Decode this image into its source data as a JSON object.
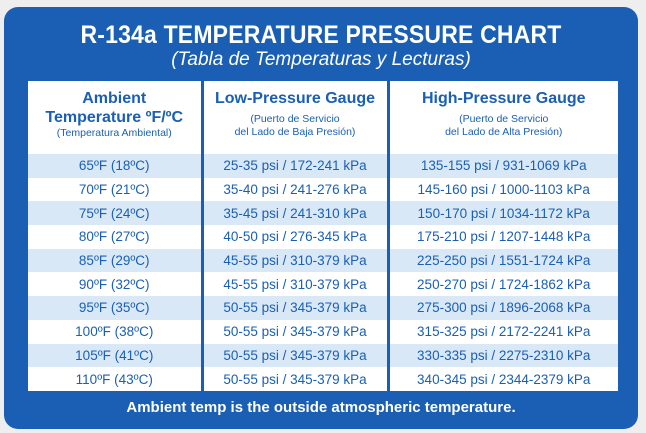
{
  "title": "R-134a TEMPERATURE PRESSURE CHART",
  "subtitle": "(Tabla de Temperaturas y Lecturas)",
  "colors": {
    "brand_blue": "#1a5fb4",
    "row_shade": "#d9e8f7",
    "background": "#eeeeee",
    "text_white": "#ffffff"
  },
  "headers": {
    "ambient": {
      "line1": "Ambient",
      "line2": "Temperature ºF/ºC",
      "sub": "(Temperatura Ambiental)"
    },
    "low": {
      "line1": "Low-Pressure Gauge",
      "sub1": "(Puerto de Servicio",
      "sub2": "del Lado de Baja Presión)"
    },
    "high": {
      "line1": "High-Pressure Gauge",
      "sub1": "(Puerto de Servicio",
      "sub2": "del Lado de Alta Presión)"
    }
  },
  "rows": [
    {
      "temp": "65ºF (18ºC)",
      "low": "25-35 psi / 172-241 kPa",
      "high": "135-155 psi / 931-1069 kPa"
    },
    {
      "temp": "70ºF (21ºC)",
      "low": "35-40 psi / 241-276 kPa",
      "high": "145-160 psi / 1000-1103 kPa"
    },
    {
      "temp": "75ºF (24ºC)",
      "low": "35-45 psi / 241-310 kPa",
      "high": "150-170 psi / 1034-1172 kPa"
    },
    {
      "temp": "80ºF (27ºC)",
      "low": "40-50 psi / 276-345 kPa",
      "high": "175-210 psi / 1207-1448 kPa"
    },
    {
      "temp": "85ºF (29ºC)",
      "low": "45-55 psi / 310-379 kPa",
      "high": "225-250 psi / 1551-1724 kPa"
    },
    {
      "temp": "90ºF (32ºC)",
      "low": "45-55 psi / 310-379 kPa",
      "high": "250-270 psi / 1724-1862 kPa"
    },
    {
      "temp": "95ºF (35ºC)",
      "low": "50-55 psi / 345-379 kPa",
      "high": "275-300 psi / 1896-2068 kPa"
    },
    {
      "temp": "100ºF (38ºC)",
      "low": "50-55 psi / 345-379 kPa",
      "high": "315-325 psi / 2172-2241 kPa"
    },
    {
      "temp": "105ºF (41ºC)",
      "low": "50-55 psi / 345-379 kPa",
      "high": "330-335 psi / 2275-2310 kPa"
    },
    {
      "temp": "110ºF (43ºC)",
      "low": "50-55 psi / 345-379 kPa",
      "high": "340-345 psi / 2344-2379 kPa"
    }
  ],
  "footer": "Ambient temp is the outside atmospheric temperature."
}
